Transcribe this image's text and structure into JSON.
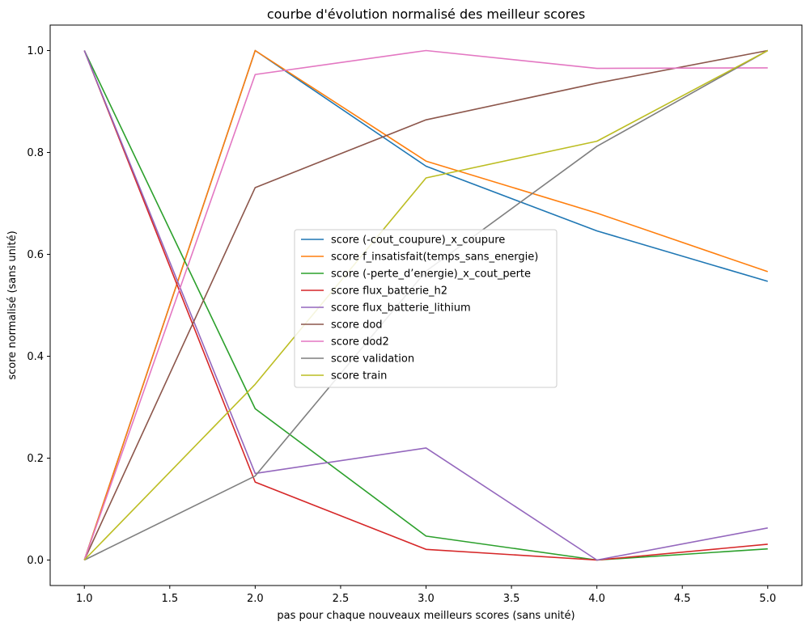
{
  "chart_data": {
    "type": "line",
    "title": "courbe d'évolution normalisé des meilleur scores",
    "xlabel": "pas pour chaque nouveaux meilleurs scores (sans unité)",
    "ylabel": "score normalisé (sans unité)",
    "xlim": [
      0.8,
      5.2
    ],
    "ylim": [
      -0.05,
      1.05
    ],
    "x": [
      1.0,
      2.0,
      3.0,
      4.0,
      5.0
    ],
    "xticks": [
      1.0,
      1.5,
      2.0,
      2.5,
      3.0,
      3.5,
      4.0,
      4.5,
      5.0
    ],
    "xtick_labels": [
      "1.0",
      "1.5",
      "2.0",
      "2.5",
      "3.0",
      "3.5",
      "4.0",
      "4.5",
      "5.0"
    ],
    "yticks": [
      0.0,
      0.2,
      0.4,
      0.6,
      0.8,
      1.0
    ],
    "ytick_labels": [
      "0.0",
      "0.2",
      "0.4",
      "0.6",
      "0.8",
      "1.0"
    ],
    "grid": false,
    "legend_position": "center",
    "series": [
      {
        "name": "score (-cout_coupure)_x_coupure",
        "color": "#1f77b4",
        "values": [
          0.0,
          1.0,
          0.773,
          0.646,
          0.547
        ]
      },
      {
        "name": "score f_insatisfait(temps_sans_energie)",
        "color": "#ff7f0e",
        "values": [
          0.0,
          1.0,
          0.783,
          0.681,
          0.566
        ]
      },
      {
        "name": "score (-perte_d’energie)_x_cout_perte",
        "color": "#2ca02c",
        "values": [
          1.0,
          0.297,
          0.047,
          0.0,
          0.022
        ]
      },
      {
        "name": "score flux_batterie_h2",
        "color": "#d62728",
        "values": [
          1.0,
          0.153,
          0.021,
          0.0,
          0.031
        ]
      },
      {
        "name": "score flux_batterie_lithium",
        "color": "#9467bd",
        "values": [
          1.0,
          0.17,
          0.22,
          0.0,
          0.063
        ]
      },
      {
        "name": "score dod",
        "color": "#8c564b",
        "values": [
          0.0,
          0.731,
          0.864,
          0.936,
          1.0
        ]
      },
      {
        "name": "score dod2",
        "color": "#e377c2",
        "values": [
          0.0,
          0.953,
          1.0,
          0.965,
          0.966
        ]
      },
      {
        "name": "score validation",
        "color": "#7f7f7f",
        "values": [
          0.0,
          0.165,
          0.567,
          0.812,
          1.0
        ]
      },
      {
        "name": "score train",
        "color": "#bcbd22",
        "values": [
          0.0,
          0.345,
          0.75,
          0.822,
          1.0
        ]
      }
    ]
  }
}
